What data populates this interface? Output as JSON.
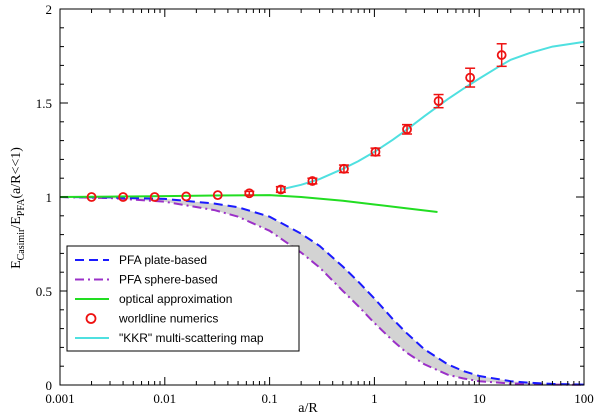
{
  "chart_data": {
    "type": "line",
    "xlabel": "a/R",
    "ylabel_parts": {
      "main1": "E",
      "sub1": "Casimir",
      "main2": "/E",
      "sub2": "PFA",
      "tail": "(a/R<<1)"
    },
    "x_scale": "log",
    "xlim": [
      0.001,
      100
    ],
    "ylim": [
      0,
      2
    ],
    "x_ticks": [
      0.001,
      0.01,
      0.1,
      1,
      10,
      100
    ],
    "x_tick_labels": [
      "0.001",
      "0.01",
      "0.1",
      "1",
      "10",
      "100"
    ],
    "y_ticks": [
      0,
      0.5,
      1,
      1.5,
      2
    ],
    "y_tick_labels": [
      "0",
      "0.5",
      "1",
      "1.5",
      "2"
    ],
    "grid": false,
    "legend_position": "bottom-left",
    "band": {
      "fill": "#d3d3d3",
      "between": [
        "PFA plate-based",
        "PFA sphere-based"
      ]
    },
    "series": [
      {
        "name": "PFA plate-based",
        "style": "dashed",
        "color": "#1a1aff",
        "x": [
          0.001,
          0.003,
          0.01,
          0.03,
          0.05,
          0.1,
          0.2,
          0.3,
          0.5,
          0.7,
          1,
          1.5,
          2,
          3,
          5,
          7,
          10,
          20,
          30,
          50,
          100
        ],
        "y": [
          1.0,
          0.998,
          0.99,
          0.965,
          0.945,
          0.895,
          0.805,
          0.74,
          0.63,
          0.55,
          0.46,
          0.35,
          0.28,
          0.19,
          0.11,
          0.075,
          0.048,
          0.02,
          0.012,
          0.006,
          0.002
        ]
      },
      {
        "name": "PFA sphere-based",
        "style": "dash-dot",
        "color": "#9b30c8",
        "x": [
          0.001,
          0.003,
          0.01,
          0.03,
          0.05,
          0.1,
          0.2,
          0.3,
          0.5,
          0.7,
          1,
          1.5,
          2,
          3,
          5,
          7,
          10,
          20,
          30,
          50,
          100
        ],
        "y": [
          1.0,
          0.994,
          0.975,
          0.93,
          0.895,
          0.82,
          0.705,
          0.625,
          0.5,
          0.42,
          0.33,
          0.235,
          0.175,
          0.11,
          0.055,
          0.035,
          0.02,
          0.008,
          0.005,
          0.002,
          0.001
        ]
      },
      {
        "name": "optical approximation",
        "style": "solid",
        "color": "#22dd22",
        "x": [
          0.001,
          0.003,
          0.01,
          0.03,
          0.1,
          0.2,
          0.5,
          1,
          2,
          4
        ],
        "y": [
          1.0,
          1.002,
          1.005,
          1.008,
          1.01,
          1.0,
          0.98,
          0.96,
          0.94,
          0.92
        ]
      },
      {
        "name": "worldline numerics",
        "style": "marker",
        "color": "#ee1111",
        "x": [
          0.002,
          0.004,
          0.008,
          0.016,
          0.032,
          0.064,
          0.128,
          0.256,
          0.512,
          1.024,
          2.048,
          4.096,
          8.192,
          16.384
        ],
        "y": [
          1.0,
          1.0,
          1.0,
          1.003,
          1.01,
          1.02,
          1.04,
          1.085,
          1.15,
          1.24,
          1.36,
          1.51,
          1.635,
          1.755
        ],
        "err": [
          0.005,
          0.005,
          0.005,
          0.005,
          0.006,
          0.01,
          0.015,
          0.015,
          0.02,
          0.02,
          0.025,
          0.035,
          0.05,
          0.06
        ]
      },
      {
        "name": "\"KKR\" multi-scattering map",
        "style": "solid",
        "color": "#4fe0e0",
        "x": [
          0.128,
          0.2,
          0.3,
          0.5,
          0.7,
          1,
          1.5,
          2,
          3,
          5,
          7,
          10,
          15,
          20,
          30,
          50,
          100
        ],
        "y": [
          1.04,
          1.065,
          1.095,
          1.15,
          1.19,
          1.24,
          1.305,
          1.355,
          1.43,
          1.52,
          1.575,
          1.63,
          1.69,
          1.73,
          1.765,
          1.8,
          1.825
        ]
      }
    ]
  }
}
